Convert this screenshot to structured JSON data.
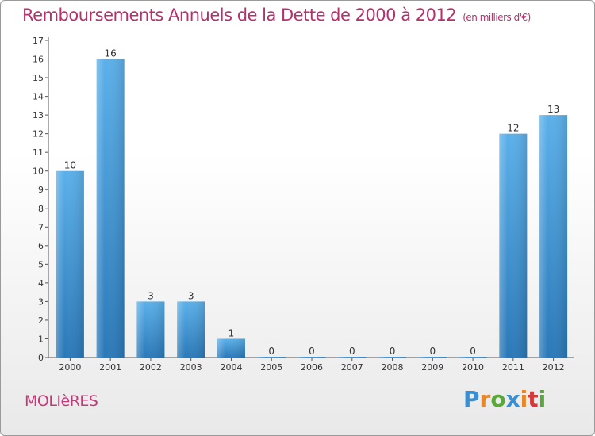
{
  "title": "Remboursements Annuels de la Dette de 2000 à 2012",
  "unit": "(en milliers d'€)",
  "commune": "MOLIèRES",
  "logo": {
    "letters": [
      "P",
      "r",
      "o",
      "x",
      "i",
      "t",
      "i"
    ],
    "colors": [
      "#3b8fd0",
      "#e8862a",
      "#5aa83c",
      "#3b8fd0",
      "#e8862a",
      "#d23b3b",
      "#5aa83c"
    ]
  },
  "colors": {
    "bar": "#3f94d6",
    "bar_light": "#5bb0ea",
    "bar_dark": "#2a78b8",
    "axis": "#555555",
    "title": "#b5306d"
  },
  "chart_data": {
    "type": "bar",
    "categories": [
      "2000",
      "2001",
      "2002",
      "2003",
      "2004",
      "2005",
      "2006",
      "2007",
      "2008",
      "2009",
      "2010",
      "2011",
      "2012"
    ],
    "values": [
      10,
      16,
      3,
      3,
      1,
      0,
      0,
      0,
      0,
      0,
      0,
      12,
      13
    ],
    "data_labels": [
      "10",
      "16",
      "3",
      "3",
      "1",
      "0",
      "0",
      "0",
      "0",
      "0",
      "0",
      "12",
      "13"
    ],
    "y_ticks": [
      "0",
      "1",
      "2",
      "3",
      "4",
      "5",
      "6",
      "7",
      "8",
      "9",
      "10",
      "11",
      "12",
      "13",
      "14",
      "15",
      "16",
      "17"
    ],
    "ylim": [
      0,
      17
    ],
    "grid": false,
    "title": "Remboursements Annuels de la Dette de 2000 à 2012",
    "xlabel": "",
    "ylabel": ""
  }
}
